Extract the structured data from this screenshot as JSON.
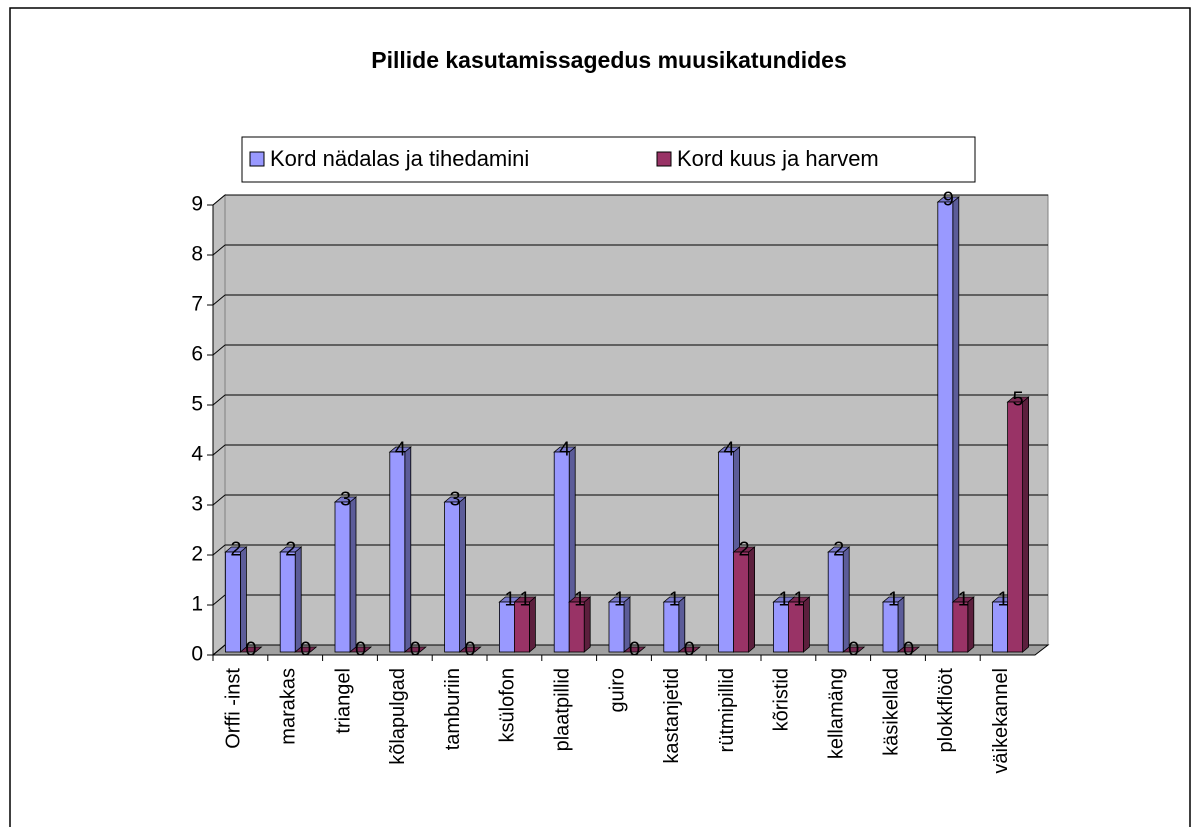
{
  "chart_data": {
    "type": "bar3d",
    "title": "Pillide kasutamissagedus muusikatundides",
    "categories": [
      "Orffi -inst",
      "marakas",
      "triangel",
      "kõlapulgad",
      "tamburiin",
      "ksülofon",
      "plaatpillid",
      "guiro",
      "kastanjetid",
      "rütmipillid",
      "kõristid",
      "kellamäng",
      "käsikellad",
      "plokkflööt",
      "väikekannel"
    ],
    "series": [
      {
        "name": "Kord nädalas ja tihedamini",
        "color": "#9999ff",
        "values": [
          2,
          2,
          3,
          4,
          3,
          1,
          4,
          1,
          1,
          4,
          1,
          2,
          1,
          9,
          1
        ]
      },
      {
        "name": "Kord kuus ja harvem",
        "color": "#993366",
        "values": [
          0,
          0,
          0,
          0,
          0,
          1,
          1,
          0,
          0,
          2,
          1,
          0,
          0,
          1,
          5
        ]
      }
    ],
    "ylim": [
      0,
      9
    ],
    "yticks": [
      0,
      1,
      2,
      3,
      4,
      5,
      6,
      7,
      8,
      9
    ],
    "grid": true,
    "legend": "top",
    "wall_color": "#c0c0c0"
  }
}
